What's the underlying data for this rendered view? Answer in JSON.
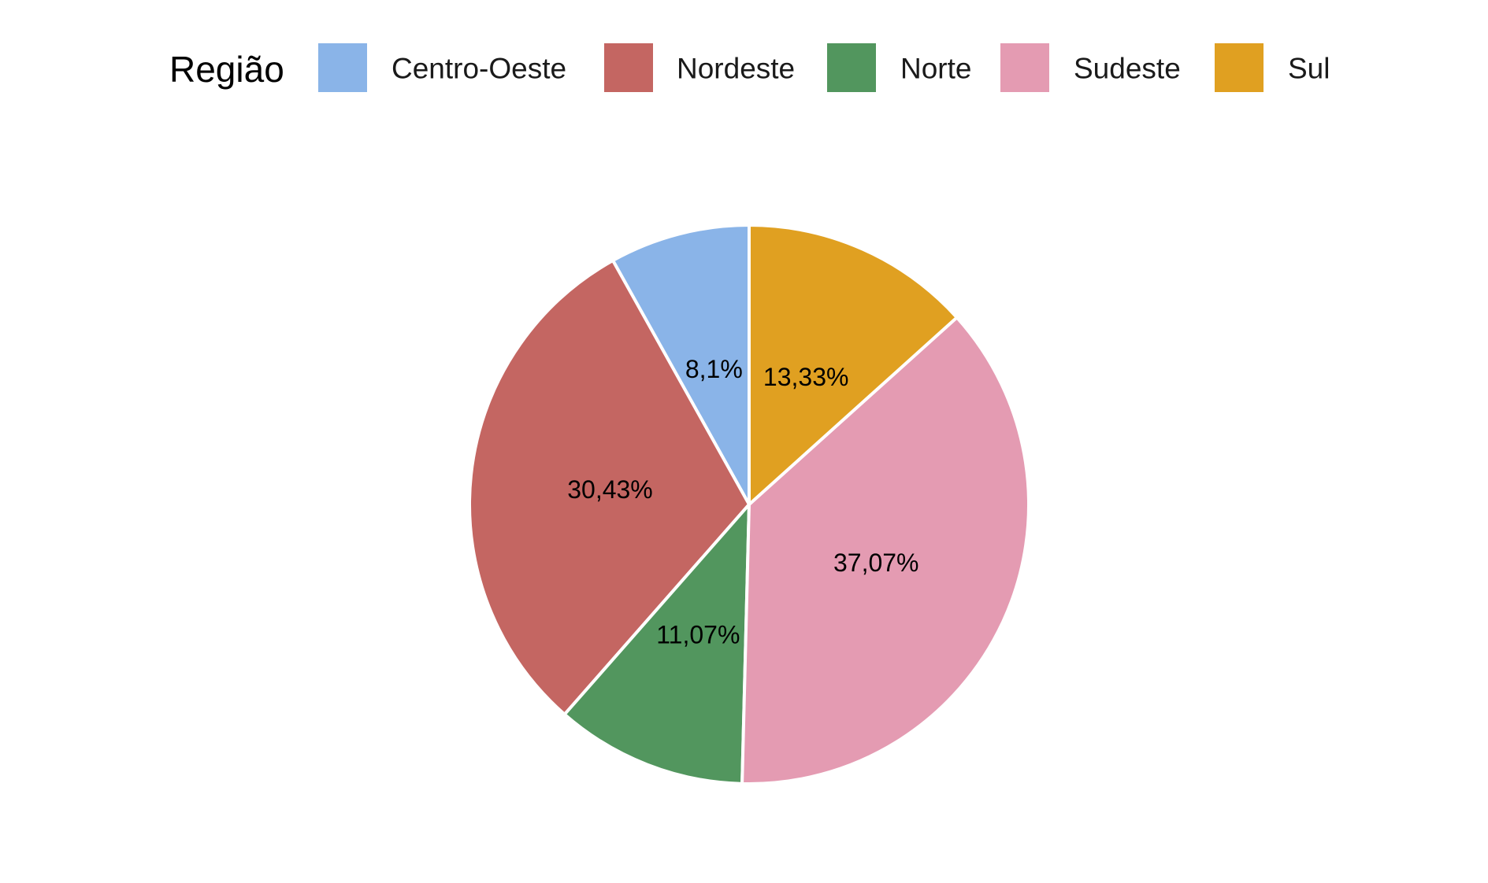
{
  "chart_data": {
    "type": "pie",
    "legend_title": "Região",
    "legend_position": "top",
    "start": "12 o'clock",
    "direction": "counter-clockwise",
    "slices": [
      {
        "name": "Centro-Oeste",
        "value": 8.1,
        "label": "8,1%",
        "color": "#8AB4E8"
      },
      {
        "name": "Nordeste",
        "value": 30.43,
        "label": "30,43%",
        "color": "#C46662"
      },
      {
        "name": "Norte",
        "value": 11.07,
        "label": "11,07%",
        "color": "#52965E"
      },
      {
        "name": "Sudeste",
        "value": 37.07,
        "label": "37,07%",
        "color": "#E49BB2"
      },
      {
        "name": "Sul",
        "value": 13.33,
        "label": "13,33%",
        "color": "#E0A021"
      }
    ]
  }
}
